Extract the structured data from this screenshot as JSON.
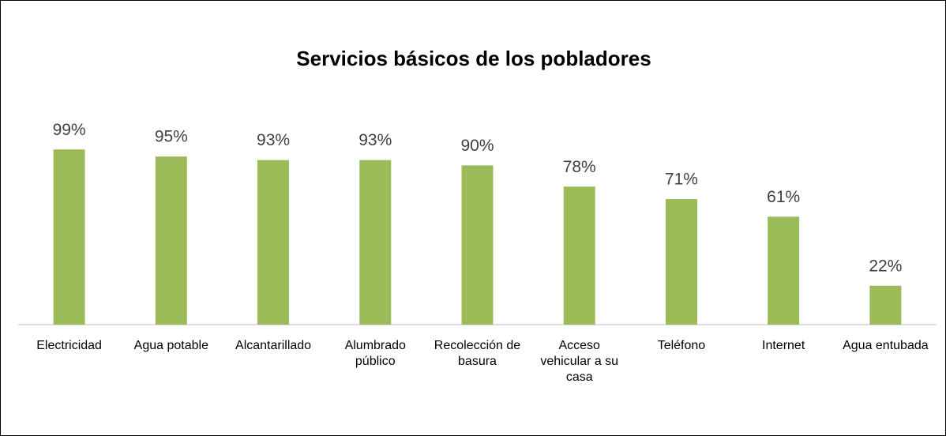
{
  "chart_data": {
    "type": "bar",
    "title": "Servicios básicos de los pobladores",
    "categories": [
      "Electricidad",
      "Agua potable",
      "Alcantarillado",
      "Alumbrado público",
      "Recolección de basura",
      "Acceso vehicular a su casa",
      "Teléfono",
      "Internet",
      "Agua entubada"
    ],
    "values": [
      99,
      95,
      93,
      93,
      90,
      78,
      71,
      61,
      22
    ],
    "value_labels": [
      "99%",
      "95%",
      "93%",
      "93%",
      "90%",
      "78%",
      "71%",
      "61%",
      "22%"
    ],
    "color": "#9bbb59",
    "ylim": [
      0,
      100
    ]
  }
}
